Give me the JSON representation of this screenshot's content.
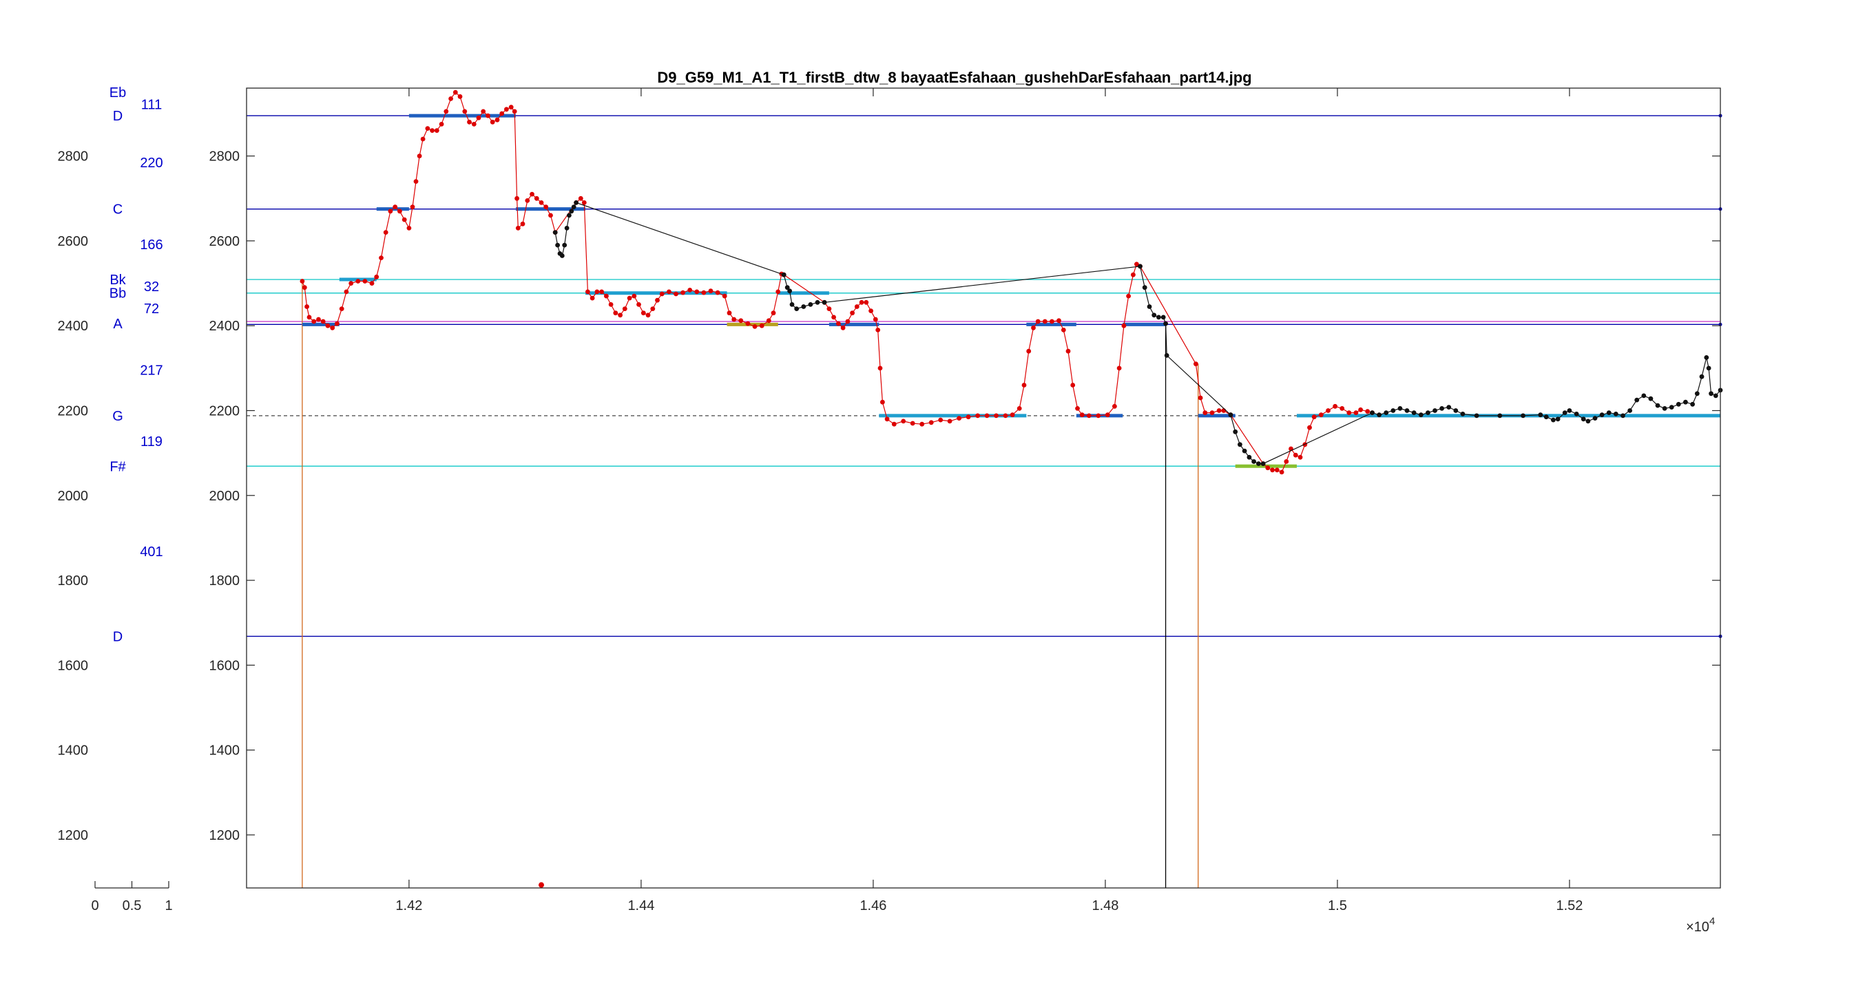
{
  "chart_data": {
    "type": "line",
    "title": "D9_G59_M1_A1_T1_firstB_dtw_8 bayaatEsfahaan_gushehDarEsfahaan_part14.jpg",
    "xlim": [
      14060,
      15330
    ],
    "ylim": [
      1075,
      2960
    ],
    "x_exponent_label": "×10",
    "x_exponent_power": "4",
    "xticks": [
      {
        "v": 14200,
        "label": "1.42"
      },
      {
        "v": 14400,
        "label": "1.44"
      },
      {
        "v": 14600,
        "label": "1.46"
      },
      {
        "v": 14800,
        "label": "1.48"
      },
      {
        "v": 15000,
        "label": "1.5"
      },
      {
        "v": 15200,
        "label": "1.52"
      }
    ],
    "yticks": [
      {
        "v": 1200,
        "label": "1200"
      },
      {
        "v": 1400,
        "label": "1400"
      },
      {
        "v": 1600,
        "label": "1600"
      },
      {
        "v": 1800,
        "label": "1800"
      },
      {
        "v": 2000,
        "label": "2000"
      },
      {
        "v": 2200,
        "label": "2200"
      },
      {
        "v": 2400,
        "label": "2400"
      },
      {
        "v": 2600,
        "label": "2600"
      },
      {
        "v": 2800,
        "label": "2800"
      }
    ],
    "side_xticks": [
      {
        "v": 0,
        "label": "0"
      },
      {
        "v": 0.5,
        "label": "0.5"
      },
      {
        "v": 1,
        "label": "1"
      }
    ],
    "note_labels": [
      {
        "name": "Eb",
        "y": 2950
      },
      {
        "name": "D",
        "y": 2895
      },
      {
        "name": "C",
        "y": 2675
      },
      {
        "name": "Bk",
        "y": 2509
      },
      {
        "name": "Bb",
        "y": 2477
      },
      {
        "name": "A",
        "y": 2405
      },
      {
        "name": "G",
        "y": 2188
      },
      {
        "name": "F#",
        "y": 2069
      },
      {
        "name": "D",
        "y": 1668
      }
    ],
    "interval_labels": [
      {
        "text": "111",
        "y": 2922
      },
      {
        "text": "220",
        "y": 2785
      },
      {
        "text": "166",
        "y": 2592
      },
      {
        "text": "32",
        "y": 2493
      },
      {
        "text": "72",
        "y": 2441
      },
      {
        "text": "217",
        "y": 2296
      },
      {
        "text": "119",
        "y": 2128
      },
      {
        "text": "401",
        "y": 1868
      }
    ],
    "reference_lines": [
      {
        "y": 2895,
        "color": "#0000aa",
        "style": "solid"
      },
      {
        "y": 2675,
        "color": "#0000aa",
        "style": "solid"
      },
      {
        "y": 2509,
        "color": "#22cccc",
        "style": "solid"
      },
      {
        "y": 2477,
        "color": "#22cccc",
        "style": "solid"
      },
      {
        "y": 2410,
        "color": "#cc44cc",
        "style": "solid"
      },
      {
        "y": 2403,
        "color": "#0000aa",
        "style": "solid"
      },
      {
        "y": 2188,
        "color": "#555555",
        "style": "dashed"
      },
      {
        "y": 2069,
        "color": "#22cccc",
        "style": "solid"
      },
      {
        "y": 1668,
        "color": "#0000aa",
        "style": "solid"
      }
    ],
    "vertical_lines": [
      {
        "x": 14108,
        "y0": 1075,
        "y1": 2505,
        "color": "#d2691e"
      },
      {
        "x": 14852,
        "y0": 1075,
        "y1": 2400,
        "color": "#000000"
      },
      {
        "x": 14880,
        "y0": 1075,
        "y1": 2310,
        "color": "#d2691e"
      }
    ],
    "segments": [
      {
        "x0": 14108,
        "x1": 14140,
        "y": 2403,
        "color": "#1f5fbf"
      },
      {
        "x0": 14140,
        "x1": 14172,
        "y": 2509,
        "color": "#1f9fcf"
      },
      {
        "x0": 14172,
        "x1": 14200,
        "y": 2675,
        "color": "#1f5fbf"
      },
      {
        "x0": 14200,
        "x1": 14292,
        "y": 2895,
        "color": "#1f5fbf"
      },
      {
        "x0": 14292,
        "x1": 14352,
        "y": 2675,
        "color": "#1f5fbf"
      },
      {
        "x0": 14352,
        "x1": 14474,
        "y": 2477,
        "color": "#1f9fcf"
      },
      {
        "x0": 14474,
        "x1": 14518,
        "y": 2403,
        "color": "#b8a020"
      },
      {
        "x0": 14518,
        "x1": 14562,
        "y": 2477,
        "color": "#1f9fcf"
      },
      {
        "x0": 14562,
        "x1": 14605,
        "y": 2403,
        "color": "#1f5fbf"
      },
      {
        "x0": 14605,
        "x1": 14732,
        "y": 2188,
        "color": "#1f9fcf"
      },
      {
        "x0": 14732,
        "x1": 14775,
        "y": 2403,
        "color": "#1f5fbf"
      },
      {
        "x0": 14775,
        "x1": 14815,
        "y": 2188,
        "color": "#1f5fbf"
      },
      {
        "x0": 14815,
        "x1": 14852,
        "y": 2403,
        "color": "#1f5fbf"
      },
      {
        "x0": 14880,
        "x1": 14912,
        "y": 2188,
        "color": "#1f5fbf"
      },
      {
        "x0": 14912,
        "x1": 14965,
        "y": 2069,
        "color": "#88c030"
      },
      {
        "x0": 14965,
        "x1": 15330,
        "y": 2188,
        "color": "#1f9fcf"
      }
    ],
    "pitch_red": [
      [
        14108,
        2505
      ],
      [
        14110,
        2490
      ],
      [
        14112,
        2445
      ],
      [
        14114,
        2420
      ],
      [
        14118,
        2410
      ],
      [
        14122,
        2415
      ],
      [
        14126,
        2410
      ],
      [
        14130,
        2400
      ],
      [
        14134,
        2395
      ],
      [
        14138,
        2405
      ],
      [
        14142,
        2440
      ],
      [
        14146,
        2480
      ],
      [
        14150,
        2500
      ],
      [
        14156,
        2505
      ],
      [
        14162,
        2505
      ],
      [
        14168,
        2500
      ],
      [
        14172,
        2515
      ],
      [
        14176,
        2560
      ],
      [
        14180,
        2620
      ],
      [
        14184,
        2670
      ],
      [
        14188,
        2680
      ],
      [
        14192,
        2670
      ],
      [
        14196,
        2650
      ],
      [
        14200,
        2630
      ],
      [
        14203,
        2680
      ],
      [
        14206,
        2740
      ],
      [
        14209,
        2800
      ],
      [
        14212,
        2840
      ],
      [
        14216,
        2865
      ],
      [
        14220,
        2860
      ],
      [
        14224,
        2860
      ],
      [
        14228,
        2875
      ],
      [
        14232,
        2905
      ],
      [
        14236,
        2935
      ],
      [
        14240,
        2950
      ],
      [
        14244,
        2940
      ],
      [
        14248,
        2905
      ],
      [
        14252,
        2880
      ],
      [
        14256,
        2875
      ],
      [
        14260,
        2890
      ],
      [
        14264,
        2905
      ],
      [
        14268,
        2895
      ],
      [
        14272,
        2880
      ],
      [
        14276,
        2885
      ],
      [
        14280,
        2900
      ],
      [
        14284,
        2910
      ],
      [
        14288,
        2915
      ],
      [
        14291,
        2905
      ],
      [
        14293,
        2700
      ],
      [
        14294,
        2630
      ],
      [
        14298,
        2640
      ],
      [
        14302,
        2695
      ],
      [
        14306,
        2710
      ],
      [
        14310,
        2700
      ],
      [
        14314,
        2690
      ],
      [
        14318,
        2680
      ],
      [
        14322,
        2660
      ],
      [
        14326,
        2620
      ],
      [
        14344,
        2690
      ],
      [
        14348,
        2700
      ],
      [
        14351,
        2690
      ],
      [
        14354,
        2480
      ],
      [
        14358,
        2465
      ],
      [
        14362,
        2480
      ],
      [
        14366,
        2480
      ],
      [
        14370,
        2470
      ],
      [
        14374,
        2450
      ],
      [
        14378,
        2430
      ],
      [
        14382,
        2425
      ],
      [
        14386,
        2440
      ],
      [
        14390,
        2465
      ],
      [
        14394,
        2470
      ],
      [
        14398,
        2450
      ],
      [
        14402,
        2430
      ],
      [
        14406,
        2425
      ],
      [
        14410,
        2440
      ],
      [
        14414,
        2460
      ],
      [
        14418,
        2475
      ],
      [
        14424,
        2480
      ],
      [
        14430,
        2475
      ],
      [
        14436,
        2478
      ],
      [
        14442,
        2484
      ],
      [
        14448,
        2480
      ],
      [
        14454,
        2478
      ],
      [
        14460,
        2482
      ],
      [
        14466,
        2478
      ],
      [
        14472,
        2470
      ],
      [
        14476,
        2430
      ],
      [
        14480,
        2415
      ],
      [
        14486,
        2412
      ],
      [
        14492,
        2405
      ],
      [
        14498,
        2398
      ],
      [
        14504,
        2400
      ],
      [
        14510,
        2412
      ],
      [
        14514,
        2430
      ],
      [
        14518,
        2480
      ],
      [
        14521,
        2522
      ],
      [
        14523,
        2520
      ],
      [
        14558,
        2455
      ],
      [
        14562,
        2440
      ],
      [
        14566,
        2420
      ],
      [
        14570,
        2405
      ],
      [
        14574,
        2395
      ],
      [
        14578,
        2410
      ],
      [
        14582,
        2430
      ],
      [
        14586,
        2445
      ],
      [
        14590,
        2455
      ],
      [
        14594,
        2455
      ],
      [
        14598,
        2435
      ],
      [
        14602,
        2415
      ],
      [
        14604,
        2390
      ],
      [
        14606,
        2300
      ],
      [
        14608,
        2220
      ],
      [
        14612,
        2180
      ],
      [
        14618,
        2168
      ],
      [
        14626,
        2175
      ],
      [
        14634,
        2170
      ],
      [
        14642,
        2168
      ],
      [
        14650,
        2172
      ],
      [
        14658,
        2178
      ],
      [
        14666,
        2175
      ],
      [
        14674,
        2182
      ],
      [
        14682,
        2185
      ],
      [
        14690,
        2188
      ],
      [
        14698,
        2188
      ],
      [
        14706,
        2188
      ],
      [
        14714,
        2188
      ],
      [
        14720,
        2190
      ],
      [
        14726,
        2205
      ],
      [
        14730,
        2260
      ],
      [
        14734,
        2340
      ],
      [
        14738,
        2395
      ],
      [
        14742,
        2410
      ],
      [
        14748,
        2410
      ],
      [
        14754,
        2410
      ],
      [
        14760,
        2412
      ],
      [
        14764,
        2390
      ],
      [
        14768,
        2340
      ],
      [
        14772,
        2260
      ],
      [
        14776,
        2205
      ],
      [
        14780,
        2190
      ],
      [
        14786,
        2188
      ],
      [
        14794,
        2188
      ],
      [
        14802,
        2190
      ],
      [
        14808,
        2210
      ],
      [
        14812,
        2300
      ],
      [
        14816,
        2400
      ],
      [
        14820,
        2470
      ],
      [
        14824,
        2520
      ],
      [
        14827,
        2545
      ],
      [
        14830,
        2540
      ],
      [
        14878,
        2310
      ],
      [
        14882,
        2230
      ],
      [
        14886,
        2195
      ],
      [
        14892,
        2195
      ],
      [
        14898,
        2200
      ],
      [
        14902,
        2200
      ],
      [
        14908,
        2190
      ],
      [
        14936,
        2075
      ],
      [
        14940,
        2065
      ],
      [
        14944,
        2060
      ],
      [
        14948,
        2060
      ],
      [
        14952,
        2055
      ],
      [
        14956,
        2080
      ],
      [
        14960,
        2110
      ],
      [
        14964,
        2095
      ],
      [
        14968,
        2090
      ],
      [
        14972,
        2120
      ],
      [
        14976,
        2160
      ],
      [
        14980,
        2185
      ],
      [
        14986,
        2190
      ],
      [
        14992,
        2200
      ],
      [
        14998,
        2210
      ],
      [
        15004,
        2205
      ],
      [
        15010,
        2195
      ],
      [
        15016,
        2195
      ],
      [
        15020,
        2202
      ],
      [
        15026,
        2198
      ],
      [
        15030,
        2195
      ]
    ],
    "pitch_black": [
      [
        14326,
        2620
      ],
      [
        14328,
        2590
      ],
      [
        14330,
        2570
      ],
      [
        14332,
        2565
      ],
      [
        14334,
        2590
      ],
      [
        14336,
        2630
      ],
      [
        14338,
        2660
      ],
      [
        14340,
        2670
      ],
      [
        14342,
        2680
      ],
      [
        14344,
        2690
      ],
      [
        14523,
        2520
      ],
      [
        14526,
        2490
      ],
      [
        14528,
        2482
      ],
      [
        14530,
        2450
      ],
      [
        14534,
        2440
      ],
      [
        14540,
        2445
      ],
      [
        14546,
        2450
      ],
      [
        14552,
        2455
      ],
      [
        14558,
        2455
      ],
      [
        14830,
        2540
      ],
      [
        14834,
        2490
      ],
      [
        14838,
        2445
      ],
      [
        14842,
        2425
      ],
      [
        14846,
        2420
      ],
      [
        14850,
        2420
      ],
      [
        14852,
        2405
      ],
      [
        14853,
        2330
      ],
      [
        14908,
        2190
      ],
      [
        14912,
        2150
      ],
      [
        14916,
        2120
      ],
      [
        14920,
        2105
      ],
      [
        14924,
        2090
      ],
      [
        14928,
        2080
      ],
      [
        14932,
        2075
      ],
      [
        14936,
        2075
      ],
      [
        15030,
        2195
      ],
      [
        15036,
        2190
      ],
      [
        15042,
        2195
      ],
      [
        15048,
        2200
      ],
      [
        15054,
        2205
      ],
      [
        15060,
        2200
      ],
      [
        15066,
        2195
      ],
      [
        15072,
        2190
      ],
      [
        15078,
        2195
      ],
      [
        15084,
        2200
      ],
      [
        15090,
        2205
      ],
      [
        15096,
        2208
      ],
      [
        15102,
        2200
      ],
      [
        15108,
        2192
      ],
      [
        15120,
        2188
      ],
      [
        15140,
        2188
      ],
      [
        15160,
        2188
      ],
      [
        15175,
        2190
      ],
      [
        15180,
        2185
      ],
      [
        15186,
        2178
      ],
      [
        15190,
        2180
      ],
      [
        15196,
        2195
      ],
      [
        15200,
        2200
      ],
      [
        15206,
        2192
      ],
      [
        15212,
        2180
      ],
      [
        15216,
        2175
      ],
      [
        15222,
        2182
      ],
      [
        15228,
        2190
      ],
      [
        15234,
        2195
      ],
      [
        15240,
        2192
      ],
      [
        15246,
        2188
      ],
      [
        15252,
        2200
      ],
      [
        15258,
        2225
      ],
      [
        15264,
        2235
      ],
      [
        15270,
        2228
      ],
      [
        15276,
        2212
      ],
      [
        15282,
        2205
      ],
      [
        15288,
        2208
      ],
      [
        15294,
        2215
      ],
      [
        15300,
        2220
      ],
      [
        15306,
        2215
      ],
      [
        15310,
        2240
      ],
      [
        15314,
        2280
      ],
      [
        15318,
        2325
      ],
      [
        15320,
        2300
      ],
      [
        15322,
        2240
      ],
      [
        15326,
        2235
      ],
      [
        15330,
        2248
      ]
    ],
    "outlier_points": [
      {
        "x": 14314,
        "y": 1082,
        "color": "#dd0000"
      }
    ]
  }
}
